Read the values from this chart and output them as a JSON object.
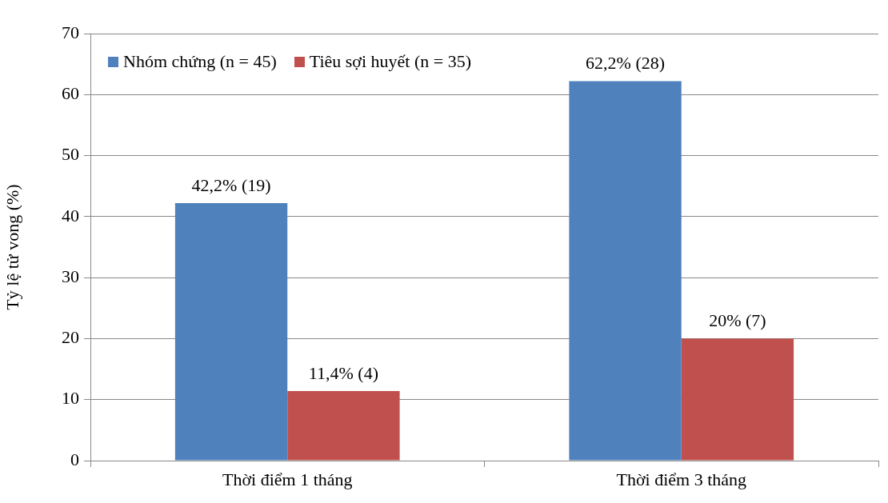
{
  "chart_data": {
    "type": "bar",
    "ylabel": "Tỷ lệ tử vong (%)",
    "categories": [
      "Thời điểm 1 tháng",
      "Thời điểm 3 tháng"
    ],
    "series": [
      {
        "name": "Nhóm chứng (n = 45)",
        "color": "#4f81bd",
        "values": [
          42.2,
          62.2
        ],
        "value_labels": [
          "42,2% (19)",
          "62,2% (28)"
        ]
      },
      {
        "name": "Tiêu sợi huyết (n = 35)",
        "color": "#c0504d",
        "values": [
          11.4,
          20
        ],
        "value_labels": [
          "11,4% (4)",
          "20% (7)"
        ]
      }
    ],
    "ylim": [
      0,
      70
    ],
    "yticks": [
      0,
      10,
      20,
      30,
      40,
      50,
      60,
      70
    ],
    "grid": "y",
    "legend": "top left"
  }
}
